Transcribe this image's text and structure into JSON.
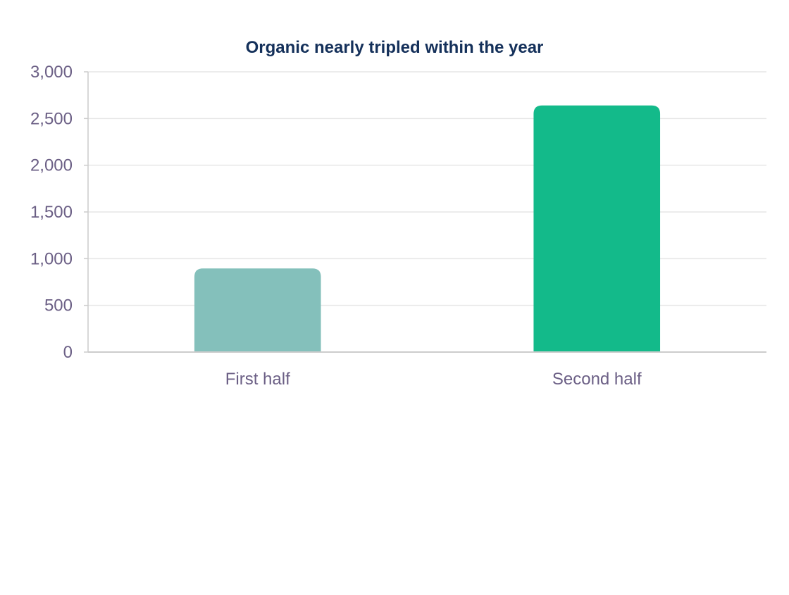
{
  "chart_data": {
    "type": "bar",
    "title": "Organic nearly tripled within the year",
    "categories": [
      "First half",
      "Second half"
    ],
    "values": [
      895,
      2640
    ],
    "ylim": [
      0,
      3000
    ],
    "yticks": [
      0,
      500,
      1000,
      1500,
      2000,
      2500,
      3000
    ],
    "ytick_labels": [
      "0",
      "500",
      "1,000",
      "1,500",
      "2,000",
      "2,500",
      "3,000"
    ],
    "grid": true,
    "legend": "none",
    "colors": {
      "bars": [
        "#84c0bb",
        "#13ba8a"
      ],
      "title": "#14305a",
      "tick_text": "#6b5f85",
      "grid": "#e6e6e6",
      "axis": "#cccccc"
    }
  }
}
